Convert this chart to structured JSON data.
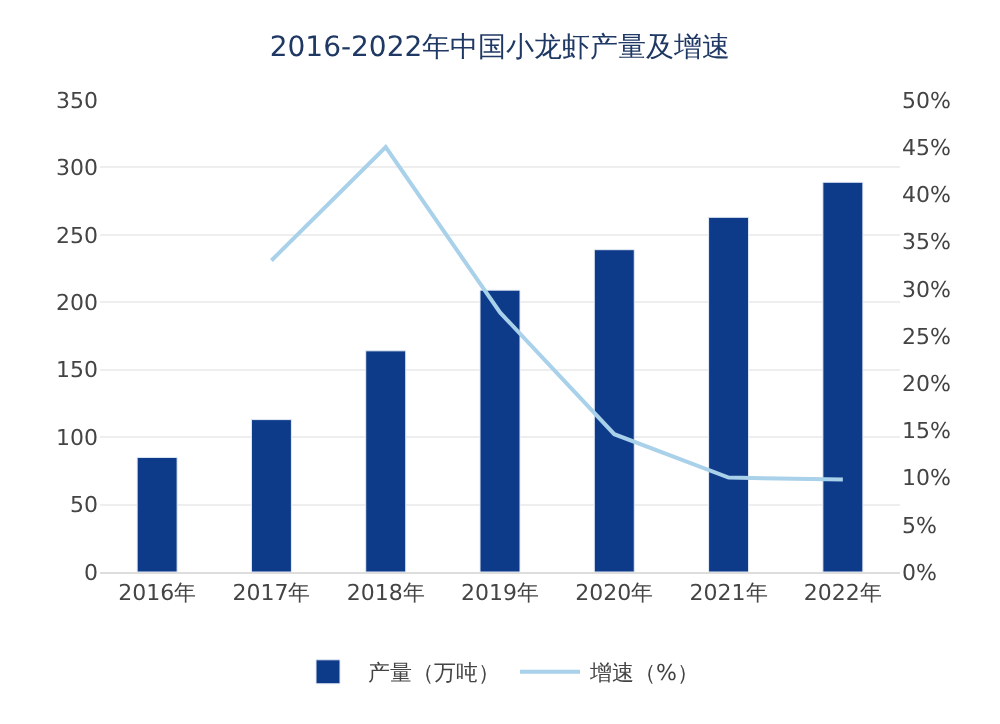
{
  "chart_data": {
    "type": "bar",
    "title": "2016-2022年中国小龙虾产量及增速",
    "categories": [
      "2016年",
      "2017年",
      "2018年",
      "2019年",
      "2020年",
      "2021年",
      "2022年"
    ],
    "series": [
      {
        "name": "产量（万吨）",
        "color": "#0e3a8a",
        "values": [
          85,
          113,
          164,
          209,
          239,
          263,
          289
        ]
      },
      {
        "name": "增速（%）",
        "type": "line",
        "axis": "y2",
        "color": "#a9d1ea",
        "values": [
          null,
          33,
          45,
          27.5,
          14.6,
          10,
          9.8
        ]
      }
    ],
    "ylim": [
      0,
      350
    ],
    "yticks": [
      0,
      50,
      100,
      150,
      200,
      250,
      300,
      350
    ],
    "y2lim": [
      0,
      50
    ],
    "y2ticks": [
      {
        "value": 0,
        "label": "0%"
      },
      {
        "value": 5,
        "label": "5%"
      },
      {
        "value": 10,
        "label": "10%"
      },
      {
        "value": 15,
        "label": "15%"
      },
      {
        "value": 20,
        "label": "20%"
      },
      {
        "value": 25,
        "label": "25%"
      },
      {
        "value": 30,
        "label": "30%"
      },
      {
        "value": 35,
        "label": "35%"
      },
      {
        "value": 40,
        "label": "40%"
      },
      {
        "value": 45,
        "label": "45%"
      },
      {
        "value": 50,
        "label": "50%"
      }
    ],
    "grid": "y",
    "legend": "bottom",
    "marker": "none",
    "line_style": "solid"
  }
}
